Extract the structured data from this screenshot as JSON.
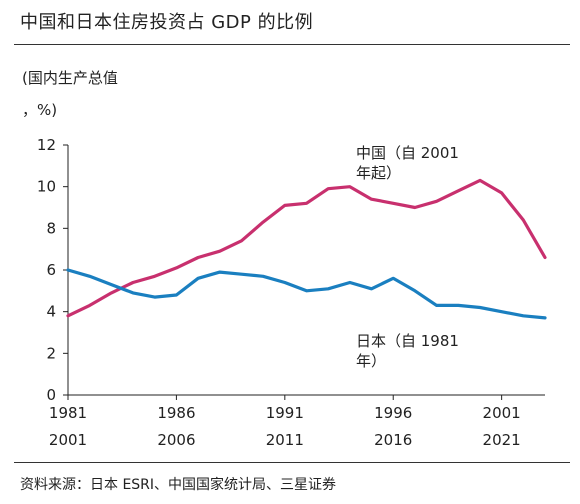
{
  "header": {
    "title": "中国和日本住房投资占 GDP 的比例"
  },
  "footer": {
    "source": "资料来源：日本 ESRI、中国国家统计局、三星证券"
  },
  "chart_data": {
    "type": "line",
    "title": "中国和日本住房投资占 GDP 的比例",
    "ylabel_lines": [
      "(国内生产总值",
      "，%)"
    ],
    "ylim": [
      0,
      12
    ],
    "yticks": [
      0,
      2,
      4,
      6,
      8,
      10,
      12
    ],
    "x_axis_bottom": {
      "ticks": [
        1981,
        1986,
        1991,
        1996,
        2001
      ],
      "range": [
        1981,
        2003
      ]
    },
    "x_axis_top_labels": [
      "2001",
      "2006",
      "2011",
      "2016",
      "2021"
    ],
    "grid": false,
    "series": [
      {
        "name": "中国（自 2001 年起）",
        "label_lines": [
          "中国（自 2001",
          "年起）"
        ],
        "color": "#c8306e",
        "x": [
          1981,
          1982,
          1983,
          1984,
          1985,
          1986,
          1987,
          1988,
          1989,
          1990,
          1991,
          1992,
          1993,
          1994,
          1995,
          1996,
          1997,
          1998,
          1999,
          2000,
          2001,
          2002,
          2003
        ],
        "values": [
          3.8,
          4.3,
          4.9,
          5.4,
          5.7,
          6.1,
          6.6,
          6.9,
          7.4,
          8.3,
          9.1,
          9.2,
          9.9,
          10.0,
          9.4,
          9.2,
          9.0,
          9.3,
          9.8,
          10.3,
          9.7,
          8.4,
          6.6
        ]
      },
      {
        "name": "日本（自 1981 年）",
        "label_lines": [
          "日本（自 1981",
          "年）"
        ],
        "color": "#1a7fc0",
        "x": [
          1981,
          1982,
          1983,
          1984,
          1985,
          1986,
          1987,
          1988,
          1989,
          1990,
          1991,
          1992,
          1993,
          1994,
          1995,
          1996,
          1997,
          1998,
          1999,
          2000,
          2001,
          2002,
          2003
        ],
        "values": [
          6.0,
          5.7,
          5.3,
          4.9,
          4.7,
          4.8,
          5.6,
          5.9,
          5.8,
          5.7,
          5.4,
          5.0,
          5.1,
          5.4,
          5.1,
          5.6,
          5.0,
          4.3,
          4.3,
          4.2,
          4.0,
          3.8,
          3.7
        ]
      }
    ]
  }
}
